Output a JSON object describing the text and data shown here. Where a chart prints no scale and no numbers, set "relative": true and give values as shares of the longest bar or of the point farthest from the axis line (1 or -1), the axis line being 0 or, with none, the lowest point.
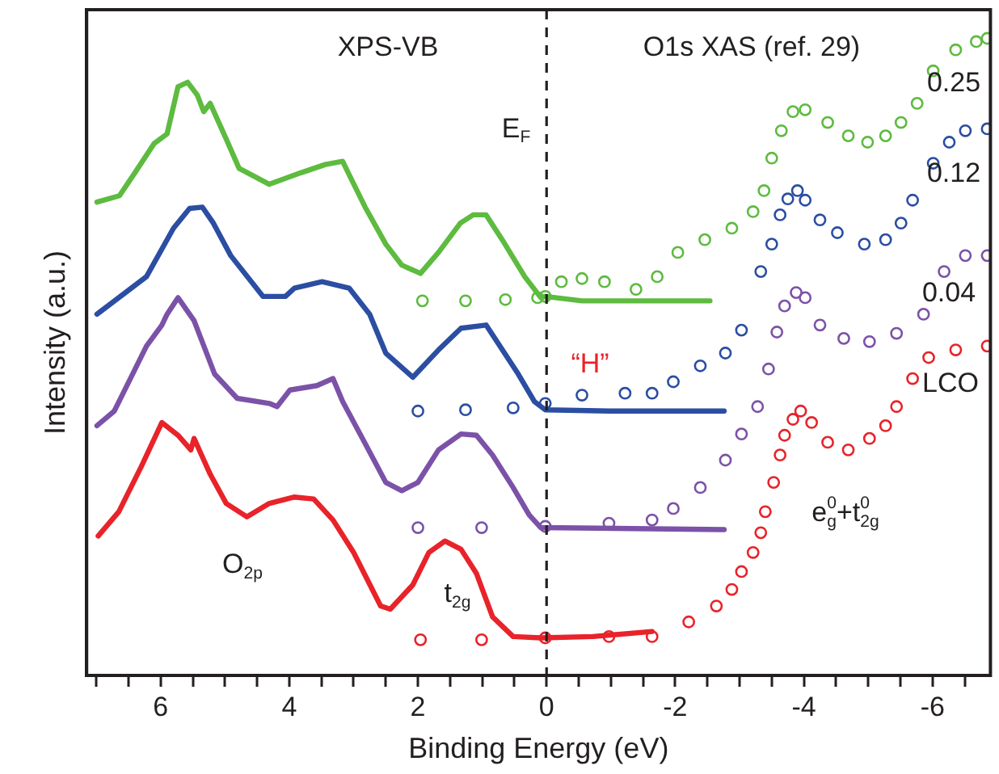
{
  "chart_data": {
    "type": "line",
    "relative": true,
    "xlabel": "Binding Energy (eV)",
    "ylabel": "Intensity (a.u.)",
    "xlim": [
      7.15,
      -6.9
    ],
    "xticks": [
      {
        "value": 7,
        "label": null
      },
      {
        "value": 6.5,
        "label": null
      },
      6,
      {
        "value": 5.5,
        "label": null
      },
      {
        "value": 5,
        "label": null
      },
      {
        "value": 4.5,
        "label": null
      },
      4,
      {
        "value": 3.5,
        "label": null
      },
      {
        "value": 3,
        "label": null
      },
      {
        "value": 2.5,
        "label": null
      },
      2,
      {
        "value": 1.5,
        "label": null
      },
      {
        "value": 1,
        "label": null
      },
      {
        "value": 0.5,
        "label": null
      },
      0,
      {
        "value": -0.5,
        "label": null
      },
      {
        "value": -1,
        "label": null
      },
      {
        "value": -1.5,
        "label": null
      },
      -2,
      {
        "value": -2.5,
        "label": null
      },
      {
        "value": -3,
        "label": null
      },
      {
        "value": -3.5,
        "label": null
      },
      -4,
      {
        "value": -4.5,
        "label": null
      },
      {
        "value": -5,
        "label": null
      },
      {
        "value": -5.5,
        "label": null
      },
      -6,
      {
        "value": -6.5,
        "label": null
      }
    ],
    "ref_lines": [
      {
        "axis": "x",
        "value": 0,
        "label": "E$_{F}$",
        "line_style": "dashed",
        "color": "#231f20"
      }
    ],
    "annotations": [
      "XPS-VB",
      "O1s XAS (ref. 29)",
      "0.25",
      "0.12",
      "0.04",
      "LCO",
      "“H”",
      "O$_{2p}$",
      "t$_{2g}$",
      "e$_{g}$$^{0}$+t$_{2g}$$^{0}$"
    ],
    "series": [
      {
        "marker": "none",
        "color": "#5dbb3f",
        "x": [
          6.99,
          6.64,
          6.4,
          6.1,
          5.9,
          5.73,
          5.58,
          5.43,
          5.33,
          5.23,
          4.98,
          4.78,
          4.31,
          3.82,
          3.44,
          3.17,
          3.07,
          2.82,
          2.5,
          2.25,
          1.96,
          1.68,
          1.34,
          1.14,
          0.94,
          0.69,
          0.34,
          0.09,
          0.02,
          -0.55,
          -2.54
        ],
        "values": [
          0.743,
          0.753,
          0.789,
          0.835,
          0.85,
          0.924,
          0.931,
          0.911,
          0.885,
          0.898,
          0.842,
          0.796,
          0.771,
          0.789,
          0.802,
          0.807,
          0.786,
          0.735,
          0.677,
          0.644,
          0.631,
          0.664,
          0.71,
          0.723,
          0.723,
          0.684,
          0.626,
          0.593,
          0.595,
          0.588,
          0.588
        ]
      },
      {
        "marker": "none",
        "color": "#2b4ea2",
        "x": [
          6.99,
          6.65,
          6.22,
          5.8,
          5.55,
          5.35,
          5.18,
          4.91,
          4.41,
          4.06,
          3.92,
          3.49,
          3.07,
          2.75,
          2.5,
          2.08,
          1.68,
          1.33,
          0.94,
          0.44,
          0.19,
          0.02,
          -0.97,
          -2.76
        ],
        "values": [
          0.567,
          0.593,
          0.626,
          0.702,
          0.733,
          0.735,
          0.71,
          0.659,
          0.595,
          0.595,
          0.608,
          0.618,
          0.608,
          0.567,
          0.506,
          0.468,
          0.511,
          0.545,
          0.55,
          0.473,
          0.43,
          0.417,
          0.415,
          0.415
        ]
      },
      {
        "marker": "none",
        "color": "#7b52a8",
        "x": [
          6.99,
          6.72,
          6.47,
          6.22,
          5.98,
          5.9,
          5.73,
          5.48,
          5.16,
          4.81,
          4.31,
          4.19,
          3.99,
          3.57,
          3.32,
          3.17,
          2.82,
          2.5,
          2.25,
          2.0,
          1.68,
          1.33,
          1.09,
          0.84,
          0.52,
          0.27,
          0.09,
          -2.76
        ],
        "values": [
          0.392,
          0.415,
          0.466,
          0.517,
          0.55,
          0.567,
          0.593,
          0.557,
          0.473,
          0.435,
          0.427,
          0.422,
          0.448,
          0.455,
          0.466,
          0.43,
          0.364,
          0.303,
          0.29,
          0.303,
          0.354,
          0.379,
          0.377,
          0.346,
          0.295,
          0.252,
          0.232,
          0.229
        ]
      },
      {
        "marker": "none",
        "color": "#e8232a",
        "x": [
          6.97,
          6.65,
          6.3,
          5.98,
          5.73,
          5.53,
          5.48,
          5.23,
          4.98,
          4.66,
          4.31,
          3.92,
          3.62,
          3.32,
          3.0,
          2.58,
          2.43,
          2.08,
          1.83,
          1.58,
          1.33,
          1.09,
          0.84,
          0.52,
          0.09,
          -0.72,
          -1.64
        ],
        "values": [
          0.219,
          0.257,
          0.328,
          0.397,
          0.377,
          0.354,
          0.372,
          0.316,
          0.27,
          0.249,
          0.27,
          0.28,
          0.277,
          0.244,
          0.193,
          0.109,
          0.104,
          0.142,
          0.193,
          0.211,
          0.198,
          0.16,
          0.092,
          0.061,
          0.059,
          0.061,
          0.069
        ]
      },
      {
        "type": "scatter",
        "marker": "circle",
        "color": "#5dbb3f",
        "x": [
          1.93,
          1.26,
          0.64,
          0.14,
          0.02,
          -0.23,
          -0.55,
          -0.9,
          -1.39,
          -1.72,
          -2.04,
          -2.46,
          -2.88,
          -3.21,
          -3.38,
          -3.5,
          -3.65,
          -3.83,
          -4.02,
          -4.37,
          -4.69,
          -4.99,
          -5.27,
          -5.51,
          -5.76,
          -6.01,
          -6.36,
          -6.68,
          -6.85
        ],
        "values": [
          0.588,
          0.588,
          0.59,
          0.593,
          0.595,
          0.618,
          0.623,
          0.618,
          0.606,
          0.626,
          0.664,
          0.684,
          0.702,
          0.728,
          0.761,
          0.812,
          0.855,
          0.885,
          0.888,
          0.868,
          0.847,
          0.837,
          0.847,
          0.868,
          0.898,
          0.949,
          0.982,
          0.995,
          1.0
        ]
      },
      {
        "type": "scatter",
        "marker": "circle",
        "color": "#2b4ea2",
        "x": [
          2.0,
          1.26,
          0.52,
          0.02,
          -0.55,
          -1.22,
          -1.64,
          -1.97,
          -2.39,
          -2.78,
          -3.03,
          -3.33,
          -3.5,
          -3.63,
          -3.75,
          -3.9,
          -4.02,
          -4.25,
          -4.52,
          -4.94,
          -5.27,
          -5.51,
          -5.69,
          -6.01,
          -6.26,
          -6.51,
          -6.85
        ],
        "values": [
          0.415,
          0.417,
          0.42,
          0.427,
          0.44,
          0.443,
          0.443,
          0.461,
          0.486,
          0.506,
          0.542,
          0.634,
          0.677,
          0.723,
          0.748,
          0.761,
          0.746,
          0.715,
          0.695,
          0.677,
          0.684,
          0.71,
          0.746,
          0.804,
          0.837,
          0.855,
          0.858
        ]
      },
      {
        "type": "scatter",
        "marker": "circle",
        "color": "#7b52a8",
        "x": [
          2.0,
          1.01,
          0.02,
          -0.97,
          -1.64,
          -1.97,
          -2.39,
          -2.78,
          -3.03,
          -3.28,
          -3.45,
          -3.58,
          -3.7,
          -3.88,
          -4.02,
          -4.25,
          -4.62,
          -5.02,
          -5.44,
          -5.86,
          -6.18,
          -6.51,
          -6.85
        ],
        "values": [
          0.232,
          0.232,
          0.234,
          0.239,
          0.244,
          0.262,
          0.295,
          0.338,
          0.379,
          0.422,
          0.481,
          0.539,
          0.58,
          0.601,
          0.593,
          0.55,
          0.529,
          0.524,
          0.537,
          0.567,
          0.634,
          0.659,
          0.659
        ]
      },
      {
        "type": "scatter",
        "marker": "circle",
        "color": "#e8232a",
        "x": [
          1.96,
          1.01,
          0.02,
          -0.97,
          -1.64,
          -2.21,
          -2.64,
          -2.88,
          -3.03,
          -3.21,
          -3.33,
          -3.4,
          -3.53,
          -3.63,
          -3.7,
          -3.83,
          -3.95,
          -4.12,
          -4.37,
          -4.69,
          -5.02,
          -5.27,
          -5.44,
          -5.69,
          -5.94,
          -6.36,
          -6.85
        ],
        "values": [
          0.056,
          0.056,
          0.059,
          0.061,
          0.061,
          0.084,
          0.109,
          0.135,
          0.163,
          0.193,
          0.224,
          0.257,
          0.303,
          0.346,
          0.377,
          0.402,
          0.415,
          0.397,
          0.366,
          0.354,
          0.372,
          0.392,
          0.422,
          0.466,
          0.499,
          0.511,
          0.517
        ]
      }
    ]
  }
}
